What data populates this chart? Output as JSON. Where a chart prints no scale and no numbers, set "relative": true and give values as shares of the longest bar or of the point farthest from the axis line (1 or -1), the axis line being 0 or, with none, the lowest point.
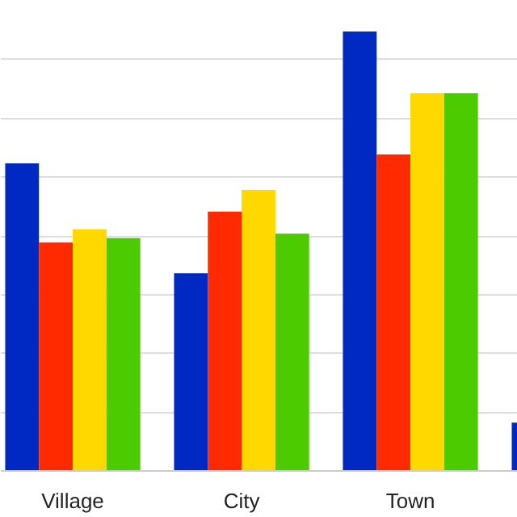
{
  "chart_data": {
    "type": "bar",
    "relative": true,
    "grid": "y",
    "categories": [
      "Village",
      "City",
      "Town",
      null
    ],
    "series": [
      {
        "color": "#0029c4",
        "values": [
          0.7,
          0.45,
          1,
          0.11
        ]
      },
      {
        "color": "#ff2a00",
        "values": [
          0.52,
          0.59,
          0.72,
          null
        ]
      },
      {
        "color": "#ffd800",
        "values": [
          0.55,
          0.64,
          0.86,
          null
        ]
      },
      {
        "color": "#4ccc00",
        "values": [
          0.53,
          0.54,
          0.86,
          null
        ]
      }
    ]
  }
}
